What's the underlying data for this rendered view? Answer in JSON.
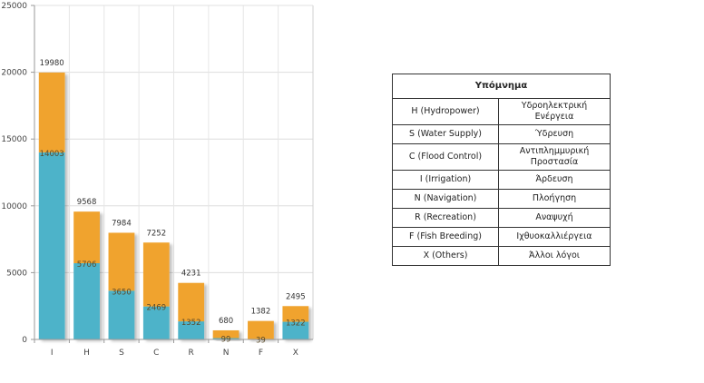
{
  "chart_data": {
    "type": "bar",
    "stacked": true,
    "categories": [
      "I",
      "H",
      "S",
      "C",
      "R",
      "N",
      "F",
      "X"
    ],
    "ylim": [
      0,
      25000
    ],
    "yticks": [
      0,
      5000,
      10000,
      15000,
      20000,
      25000
    ],
    "series": [
      {
        "values": [
          14003,
          5706,
          3650,
          2469,
          1352,
          99,
          39,
          1322
        ],
        "color": "#4db3c9"
      },
      {
        "values": [
          5977,
          3862,
          4334,
          4783,
          2879,
          581,
          1343,
          1173
        ],
        "color": "#f0a32f"
      }
    ],
    "totals": [
      19980,
      9568,
      7984,
      7252,
      4231,
      680,
      1382,
      2495
    ],
    "inner_labels": [
      14003,
      5706,
      3650,
      2469,
      1352,
      99,
      39,
      1322
    ],
    "grid": true,
    "title": "",
    "xlabel": "",
    "ylabel": ""
  },
  "legend": {
    "title": "Υπόμνημα",
    "rows": [
      {
        "en": "H (Hydropower)",
        "gr": "Υδροηλεκτρική Ενέργεια"
      },
      {
        "en": "S (Water Supply)",
        "gr": "Ύδρευση"
      },
      {
        "en": "C (Flood Control)",
        "gr": "Αντιπλημμυρική Προστασία"
      },
      {
        "en": "I (Irrigation)",
        "gr": "Άρδευση"
      },
      {
        "en": "N (Navigation)",
        "gr": "Πλοήγηση"
      },
      {
        "en": "R (Recreation)",
        "gr": "Αναψυχή"
      },
      {
        "en": "F (Fish Breeding)",
        "gr": "Ιχθυοκαλλιέργεια"
      },
      {
        "en": "X (Others)",
        "gr": "Άλλοι λόγοι"
      }
    ]
  }
}
